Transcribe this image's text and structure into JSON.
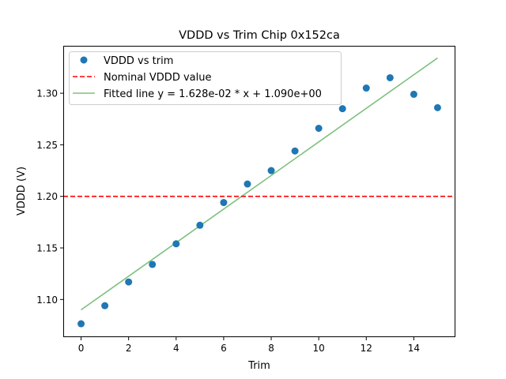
{
  "chart_data": {
    "type": "scatter",
    "title": "VDDD vs Trim Chip 0x152ca",
    "xlabel": "Trim",
    "ylabel": "VDDD (V)",
    "xlim": [
      -0.75,
      15.75
    ],
    "ylim": [
      1.0635,
      1.346
    ],
    "xticks": [
      0,
      2,
      4,
      6,
      8,
      10,
      12,
      14
    ],
    "xtick_labels": [
      "0",
      "2",
      "4",
      "6",
      "8",
      "10",
      "12",
      "14"
    ],
    "yticks": [
      1.1,
      1.15,
      1.2,
      1.25,
      1.3
    ],
    "ytick_labels": [
      "1.10",
      "1.15",
      "1.20",
      "1.25",
      "1.30"
    ],
    "grid": false,
    "legend_position": "top-left",
    "series": [
      {
        "name": "VDDD vs trim",
        "kind": "markers",
        "color": "#1f77b4",
        "x": [
          0,
          1,
          2,
          3,
          4,
          5,
          6,
          7,
          8,
          9,
          10,
          11,
          12,
          13,
          14,
          15
        ],
        "y": [
          1.0765,
          1.094,
          1.117,
          1.134,
          1.154,
          1.172,
          1.194,
          1.212,
          1.225,
          1.244,
          1.266,
          1.285,
          1.305,
          1.315,
          1.299,
          1.286
        ]
      },
      {
        "name": "Nominal VDDD value",
        "kind": "hline",
        "color": "#ff0000",
        "style": "dashed",
        "y": 1.2
      },
      {
        "name": "Fitted line y = 1.628e-02 * x + 1.090e+00",
        "kind": "line",
        "color": "#7fc07f",
        "slope": 0.01628,
        "intercept": 1.09,
        "x": [
          0,
          15
        ]
      }
    ]
  }
}
